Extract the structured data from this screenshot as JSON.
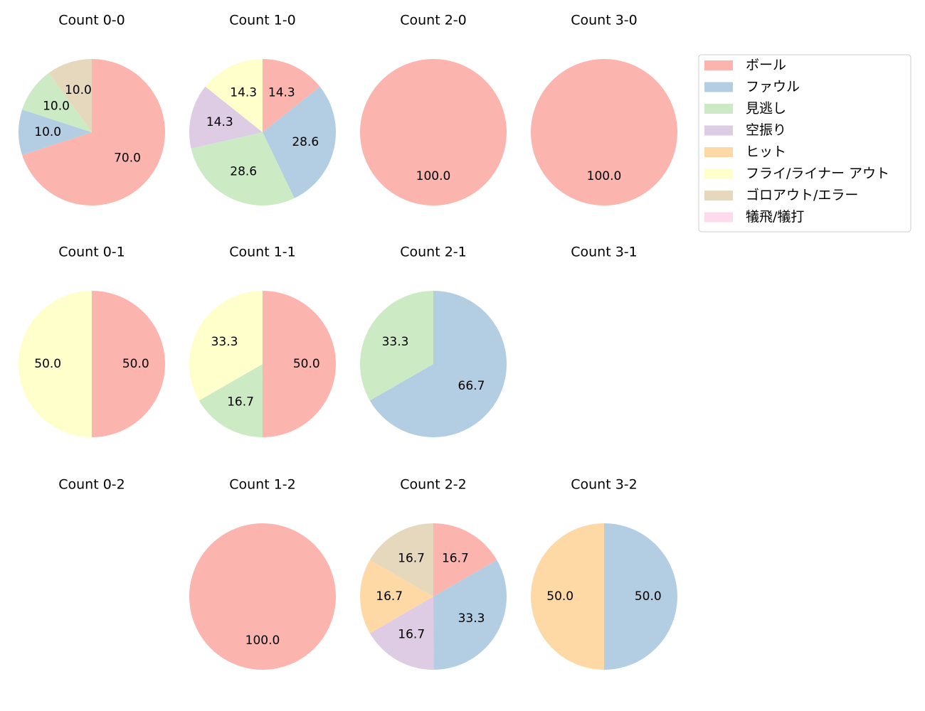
{
  "chart_data": [
    {
      "type": "pie",
      "title": "Count 0-0",
      "categories": [
        "ボール",
        "ファウル",
        "見逃し",
        "ゴロアウト/エラー"
      ],
      "values": [
        70,
        10,
        10,
        10
      ],
      "value_labels": [
        "70.0",
        "10.0",
        "10.0",
        "10.0"
      ]
    },
    {
      "type": "pie",
      "title": "Count 1-0",
      "categories": [
        "ボール",
        "ファウル",
        "見逃し",
        "空振り",
        "フライ/ライナー アウト"
      ],
      "values": [
        14.3,
        28.6,
        28.6,
        14.3,
        14.3
      ],
      "value_labels": [
        "14.3",
        "28.6",
        "28.6",
        "14.3",
        "14.3"
      ]
    },
    {
      "type": "pie",
      "title": "Count 2-0",
      "categories": [
        "ボール"
      ],
      "values": [
        100
      ],
      "value_labels": [
        "100.0"
      ]
    },
    {
      "type": "pie",
      "title": "Count 3-0",
      "categories": [
        "ボール"
      ],
      "values": [
        100
      ],
      "value_labels": [
        "100.0"
      ]
    },
    {
      "type": "pie",
      "title": "Count 0-1",
      "categories": [
        "ボール",
        "フライ/ライナー アウト"
      ],
      "values": [
        50,
        50
      ],
      "value_labels": [
        "50.0",
        "50.0"
      ]
    },
    {
      "type": "pie",
      "title": "Count 1-1",
      "categories": [
        "ボール",
        "見逃し",
        "フライ/ライナー アウト"
      ],
      "values": [
        50,
        16.7,
        33.3
      ],
      "value_labels": [
        "50.0",
        "16.7",
        "33.3"
      ]
    },
    {
      "type": "pie",
      "title": "Count 2-1",
      "categories": [
        "ファウル",
        "見逃し"
      ],
      "values": [
        66.7,
        33.3
      ],
      "value_labels": [
        "66.7",
        "33.3"
      ]
    },
    {
      "type": "pie",
      "title": "Count 3-1",
      "categories": [],
      "values": [],
      "value_labels": []
    },
    {
      "type": "pie",
      "title": "Count 0-2",
      "categories": [],
      "values": [],
      "value_labels": []
    },
    {
      "type": "pie",
      "title": "Count 1-2",
      "categories": [
        "ボール"
      ],
      "values": [
        100
      ],
      "value_labels": [
        "100.0"
      ]
    },
    {
      "type": "pie",
      "title": "Count 2-2",
      "categories": [
        "ボール",
        "ファウル",
        "空振り",
        "ヒット",
        "ゴロアウト/エラー"
      ],
      "values": [
        16.7,
        33.3,
        16.7,
        16.7,
        16.7
      ],
      "value_labels": [
        "16.7",
        "33.3",
        "16.7",
        "16.7",
        "16.7"
      ]
    },
    {
      "type": "pie",
      "title": "Count 3-2",
      "categories": [
        "ファウル",
        "ヒット"
      ],
      "values": [
        50,
        50
      ],
      "value_labels": [
        "50.0",
        "50.0"
      ]
    }
  ],
  "legend": {
    "position": "upper right",
    "entries": [
      {
        "name": "ボール",
        "color": "#fbb4ae"
      },
      {
        "name": "ファウル",
        "color": "#b3cde3"
      },
      {
        "name": "見逃し",
        "color": "#ccebc5"
      },
      {
        "name": "空振り",
        "color": "#decbe4"
      },
      {
        "name": "ヒット",
        "color": "#fed9a6"
      },
      {
        "name": "フライ/ライナー アウト",
        "color": "#ffffcc"
      },
      {
        "name": "ゴロアウト/エラー",
        "color": "#e5d8bd"
      },
      {
        "name": "犠飛/犠打",
        "color": "#fddaec"
      }
    ]
  }
}
